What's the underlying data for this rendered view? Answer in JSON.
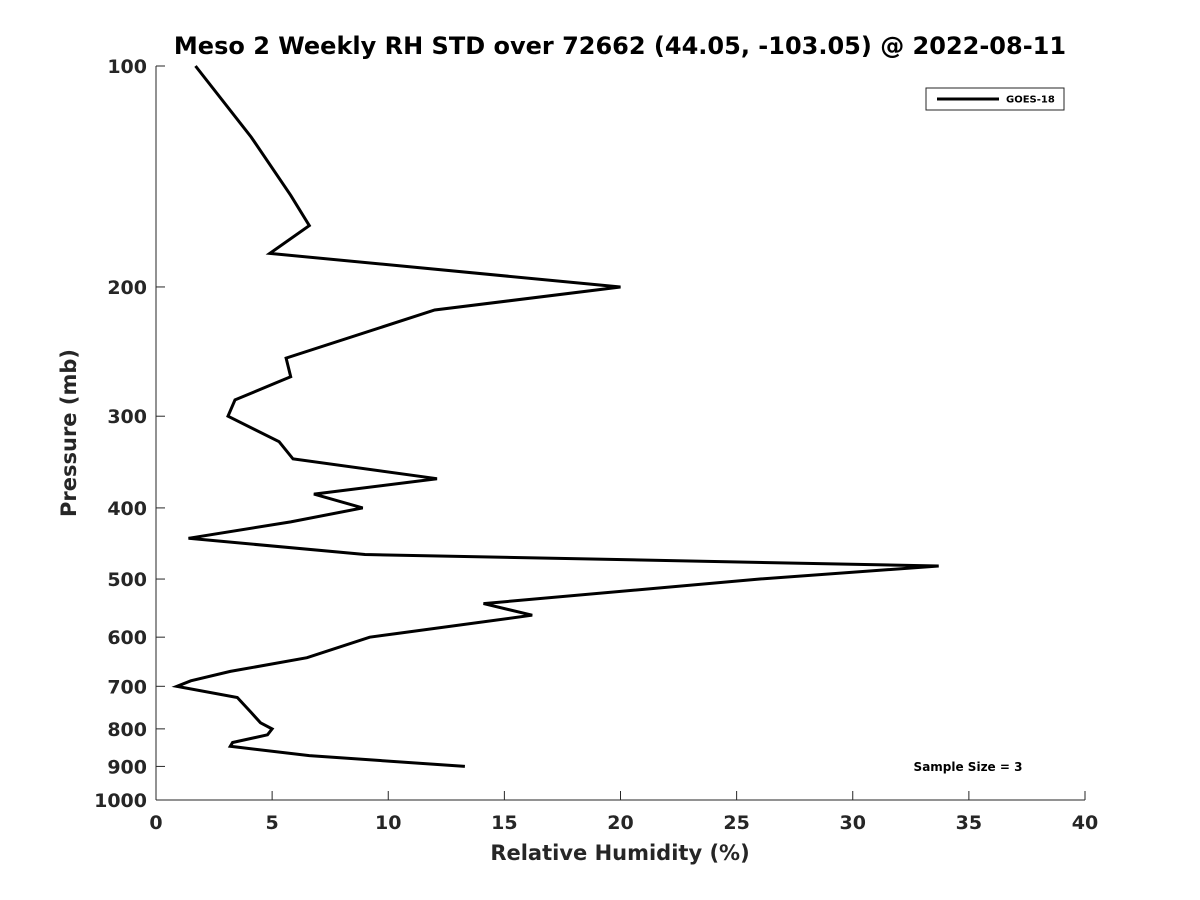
{
  "chart_data": {
    "type": "line",
    "title": "Meso 2 Weekly RH STD over 72662 (44.05, -103.05) @ 2022-08-11",
    "xlabel": "Relative Humidity (%)",
    "ylabel": "Pressure (mb)",
    "xlim": [
      0,
      40
    ],
    "ylim": [
      100,
      1000
    ],
    "y_scale": "log",
    "y_reversed": true,
    "x_ticks": [
      0,
      5,
      10,
      15,
      20,
      25,
      30,
      35,
      40
    ],
    "y_ticks": [
      100,
      200,
      300,
      400,
      500,
      600,
      700,
      800,
      900,
      1000
    ],
    "grid": false,
    "legend_position": "top-right",
    "series": [
      {
        "name": "GOES-18",
        "color": "#000000",
        "points": [
          {
            "x": 1.7,
            "y": 100
          },
          {
            "x": 4.1,
            "y": 125
          },
          {
            "x": 5.8,
            "y": 150
          },
          {
            "x": 6.6,
            "y": 165
          },
          {
            "x": 4.9,
            "y": 180
          },
          {
            "x": 20.0,
            "y": 200
          },
          {
            "x": 12.0,
            "y": 215
          },
          {
            "x": 5.6,
            "y": 250
          },
          {
            "x": 5.8,
            "y": 265
          },
          {
            "x": 3.4,
            "y": 285
          },
          {
            "x": 3.1,
            "y": 300
          },
          {
            "x": 5.3,
            "y": 325
          },
          {
            "x": 5.9,
            "y": 343
          },
          {
            "x": 12.1,
            "y": 365
          },
          {
            "x": 6.8,
            "y": 383
          },
          {
            "x": 8.9,
            "y": 400
          },
          {
            "x": 5.8,
            "y": 418
          },
          {
            "x": 1.4,
            "y": 440
          },
          {
            "x": 9.0,
            "y": 463
          },
          {
            "x": 33.7,
            "y": 480
          },
          {
            "x": 26.0,
            "y": 500
          },
          {
            "x": 14.1,
            "y": 540
          },
          {
            "x": 16.2,
            "y": 560
          },
          {
            "x": 9.2,
            "y": 600
          },
          {
            "x": 6.5,
            "y": 640
          },
          {
            "x": 3.2,
            "y": 668
          },
          {
            "x": 1.5,
            "y": 688
          },
          {
            "x": 0.9,
            "y": 700
          },
          {
            "x": 3.5,
            "y": 725
          },
          {
            "x": 4.1,
            "y": 760
          },
          {
            "x": 4.5,
            "y": 785
          },
          {
            "x": 5.0,
            "y": 800
          },
          {
            "x": 4.8,
            "y": 815
          },
          {
            "x": 3.3,
            "y": 835
          },
          {
            "x": 3.2,
            "y": 845
          },
          {
            "x": 6.6,
            "y": 870
          },
          {
            "x": 13.3,
            "y": 900
          }
        ]
      }
    ],
    "annotations": [
      {
        "text": "Sample Size = 3"
      }
    ]
  }
}
